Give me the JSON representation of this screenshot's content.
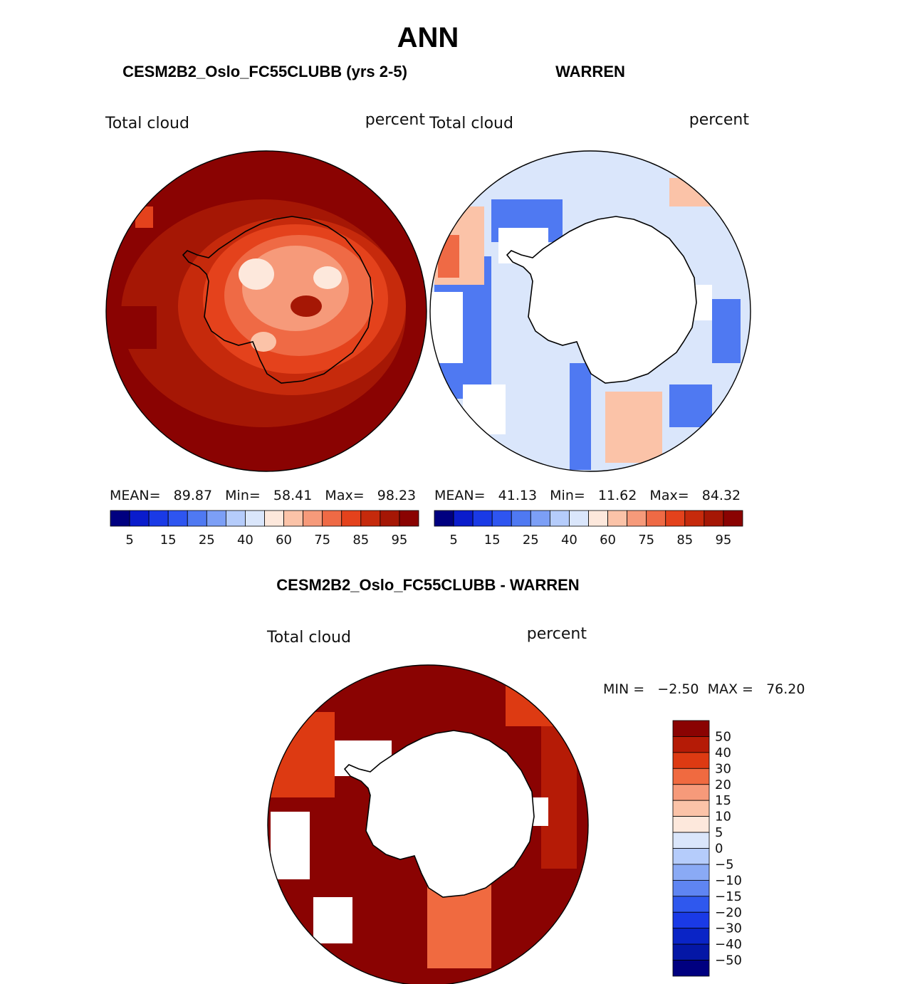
{
  "season": "ANN",
  "colors": {
    "seq": [
      "#000080",
      "#0a1ccc",
      "#1a3ae6",
      "#2e55f0",
      "#4f79f2",
      "#7c9ff6",
      "#b5ccfb",
      "#dae6fb",
      "#fde8dc",
      "#fbc3a8",
      "#f69a7a",
      "#ef6a45",
      "#e4421c",
      "#c62a0c",
      "#a51705",
      "#8a0302"
    ],
    "diff_top_to_bottom": [
      "#8a0302",
      "#b51b06",
      "#dd3a12",
      "#f06a40",
      "#f69a7a",
      "#fbc3a8",
      "#fde8dc",
      "#dae6fb",
      "#b5ccfb",
      "#8aaaf5",
      "#5f85f2",
      "#2f58ee",
      "#1a3ae6",
      "#0a24c6",
      "#0417a6",
      "#000080"
    ]
  },
  "panels": [
    {
      "title": "CESM2B2_Oslo_FC55CLUBB (yrs 2-5)",
      "variable": "Total cloud",
      "units": "percent",
      "stats_label": "MEAN=   89.87   Min=   58.41   Max=   98.23",
      "colorbar_ticks": [
        "5",
        "15",
        "25",
        "40",
        "60",
        "75",
        "85",
        "95"
      ]
    },
    {
      "title": "WARREN",
      "variable": "Total cloud",
      "units": "percent",
      "stats_label": "MEAN=   41.13   Min=   11.62   Max=   84.32",
      "colorbar_ticks": [
        "5",
        "15",
        "25",
        "40",
        "60",
        "75",
        "85",
        "95"
      ]
    },
    {
      "title": "CESM2B2_Oslo_FC55CLUBB - WARREN",
      "variable": "Total cloud",
      "units": "percent",
      "stats_label": "MIN =   −2.50  MAX =   76.20",
      "colorbar_ticks": [
        "50",
        "40",
        "30",
        "20",
        "15",
        "10",
        "5",
        "0",
        "−5",
        "−10",
        "−15",
        "−20",
        "−30",
        "−40",
        "−50"
      ]
    }
  ]
}
